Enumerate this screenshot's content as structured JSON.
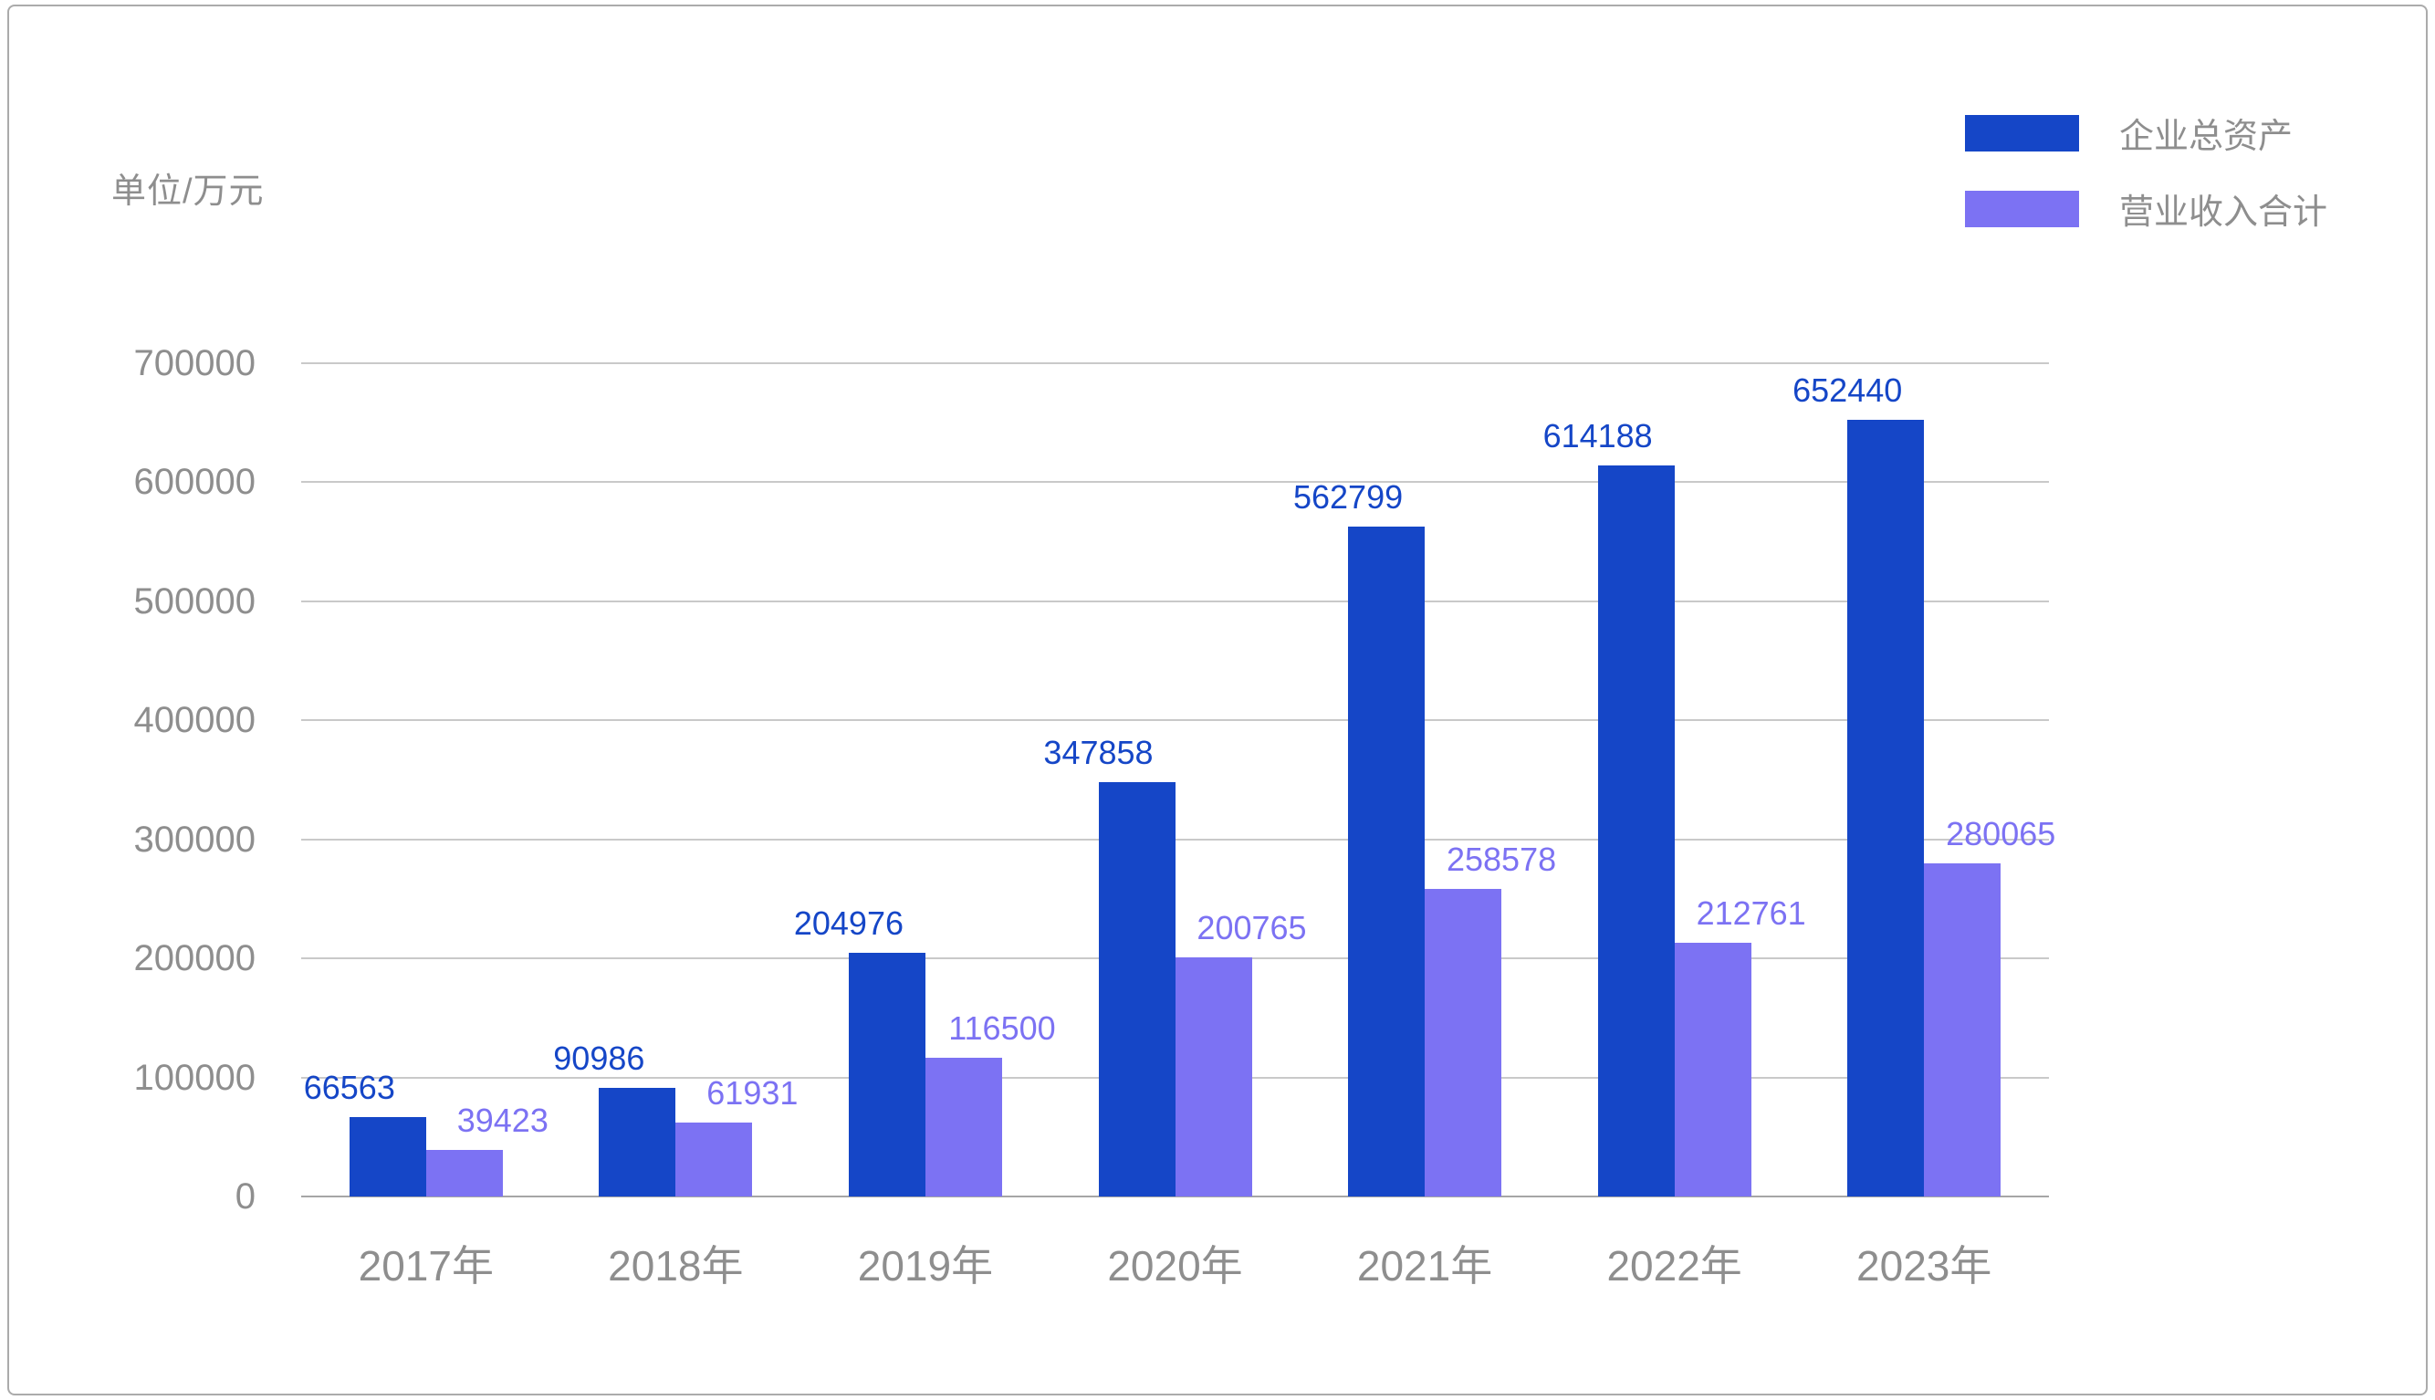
{
  "unit_label": "单位/万元",
  "legend": {
    "items": [
      {
        "label": "企业总资产",
        "color": "#1546C7"
      },
      {
        "label": "营业收入合计",
        "color": "#7C72F3"
      }
    ]
  },
  "colors": {
    "series_dark": "#1546C7",
    "series_light": "#7C72F3",
    "axis_text": "#8e8e8e",
    "gridline": "#c9c9c9",
    "baseline": "#a6a6a6",
    "frame_border": "#ababab",
    "background": "#ffffff"
  },
  "chart_data": {
    "type": "bar",
    "title": "",
    "unit": "单位/万元",
    "categories": [
      "2017年",
      "2018年",
      "2019年",
      "2020年",
      "2021年",
      "2022年",
      "2023年"
    ],
    "series": [
      {
        "name": "企业总资产",
        "key": "total-assets",
        "color": "#1546C7",
        "values": [
          66563,
          90986,
          204976,
          347858,
          562799,
          614188,
          652440
        ]
      },
      {
        "name": "营业收入合计",
        "key": "revenue",
        "color": "#7C72F3",
        "values": [
          39423,
          61931,
          116500,
          200765,
          258578,
          212761,
          280065
        ]
      }
    ],
    "ylim": [
      0,
      700000
    ],
    "yticks": [
      0,
      100000,
      200000,
      300000,
      400000,
      500000,
      600000,
      700000
    ],
    "grid": true,
    "legend_position": "top-right",
    "value_labels": true
  }
}
